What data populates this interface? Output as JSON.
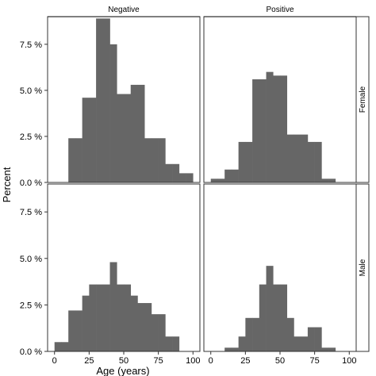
{
  "chart_data": {
    "type": "bar",
    "subtype": "faceted histogram",
    "xlabel": "Age (years)",
    "ylabel": "Percent",
    "xlim": [
      -5,
      105
    ],
    "ylim": [
      0,
      9
    ],
    "x_ticks": [
      0,
      25,
      50,
      75,
      100
    ],
    "x_tick_labels": [
      "0",
      "25",
      "50",
      "75",
      "100"
    ],
    "y_ticks": [
      0,
      2.5,
      5,
      7.5
    ],
    "y_tick_labels": [
      "0.0 %",
      "2.5 %",
      "5.0 %",
      "7.5 %"
    ],
    "bin_width": 5,
    "bar_color": "#666666",
    "columns": [
      "Negative",
      "Positive"
    ],
    "rows": [
      "Female",
      "Male"
    ],
    "panels": [
      {
        "column": "Negative",
        "row": "Female",
        "bins": [
          {
            "x0": 10,
            "x1": 15,
            "value": 2.4
          },
          {
            "x0": 15,
            "x1": 20,
            "value": 2.4
          },
          {
            "x0": 20,
            "x1": 25,
            "value": 4.6
          },
          {
            "x0": 25,
            "x1": 30,
            "value": 4.6
          },
          {
            "x0": 30,
            "x1": 35,
            "value": 8.9
          },
          {
            "x0": 35,
            "x1": 40,
            "value": 8.9
          },
          {
            "x0": 40,
            "x1": 45,
            "value": 7.5
          },
          {
            "x0": 45,
            "x1": 50,
            "value": 4.8
          },
          {
            "x0": 50,
            "x1": 55,
            "value": 4.8
          },
          {
            "x0": 55,
            "x1": 60,
            "value": 5.3
          },
          {
            "x0": 60,
            "x1": 65,
            "value": 5.3
          },
          {
            "x0": 65,
            "x1": 70,
            "value": 2.4
          },
          {
            "x0": 70,
            "x1": 75,
            "value": 2.4
          },
          {
            "x0": 75,
            "x1": 80,
            "value": 2.4
          },
          {
            "x0": 80,
            "x1": 85,
            "value": 1.0
          },
          {
            "x0": 85,
            "x1": 90,
            "value": 1.0
          },
          {
            "x0": 90,
            "x1": 95,
            "value": 0.5
          },
          {
            "x0": 95,
            "x1": 100,
            "value": 0.5
          }
        ]
      },
      {
        "column": "Positive",
        "row": "Female",
        "bins": [
          {
            "x0": 0,
            "x1": 5,
            "value": 0.2
          },
          {
            "x0": 5,
            "x1": 10,
            "value": 0.2
          },
          {
            "x0": 10,
            "x1": 15,
            "value": 0.7
          },
          {
            "x0": 15,
            "x1": 20,
            "value": 0.7
          },
          {
            "x0": 20,
            "x1": 25,
            "value": 2.2
          },
          {
            "x0": 25,
            "x1": 30,
            "value": 2.2
          },
          {
            "x0": 30,
            "x1": 35,
            "value": 5.6
          },
          {
            "x0": 35,
            "x1": 40,
            "value": 5.6
          },
          {
            "x0": 40,
            "x1": 45,
            "value": 6.0
          },
          {
            "x0": 45,
            "x1": 50,
            "value": 5.8
          },
          {
            "x0": 50,
            "x1": 55,
            "value": 5.8
          },
          {
            "x0": 55,
            "x1": 60,
            "value": 2.6
          },
          {
            "x0": 60,
            "x1": 65,
            "value": 2.6
          },
          {
            "x0": 65,
            "x1": 70,
            "value": 2.6
          },
          {
            "x0": 70,
            "x1": 75,
            "value": 2.2
          },
          {
            "x0": 75,
            "x1": 80,
            "value": 2.2
          },
          {
            "x0": 80,
            "x1": 85,
            "value": 0.2
          },
          {
            "x0": 85,
            "x1": 90,
            "value": 0.2
          }
        ]
      },
      {
        "column": "Negative",
        "row": "Male",
        "bins": [
          {
            "x0": 0,
            "x1": 5,
            "value": 0.5
          },
          {
            "x0": 5,
            "x1": 10,
            "value": 0.5
          },
          {
            "x0": 10,
            "x1": 15,
            "value": 2.2
          },
          {
            "x0": 15,
            "x1": 20,
            "value": 2.2
          },
          {
            "x0": 20,
            "x1": 25,
            "value": 3.0
          },
          {
            "x0": 25,
            "x1": 30,
            "value": 3.6
          },
          {
            "x0": 30,
            "x1": 35,
            "value": 3.6
          },
          {
            "x0": 35,
            "x1": 40,
            "value": 3.6
          },
          {
            "x0": 40,
            "x1": 45,
            "value": 4.8
          },
          {
            "x0": 45,
            "x1": 50,
            "value": 3.6
          },
          {
            "x0": 50,
            "x1": 55,
            "value": 3.6
          },
          {
            "x0": 55,
            "x1": 60,
            "value": 3.0
          },
          {
            "x0": 60,
            "x1": 65,
            "value": 2.6
          },
          {
            "x0": 65,
            "x1": 70,
            "value": 2.6
          },
          {
            "x0": 70,
            "x1": 75,
            "value": 2.0
          },
          {
            "x0": 75,
            "x1": 80,
            "value": 2.0
          },
          {
            "x0": 80,
            "x1": 85,
            "value": 0.8
          },
          {
            "x0": 85,
            "x1": 90,
            "value": 0.8
          }
        ]
      },
      {
        "column": "Positive",
        "row": "Male",
        "bins": [
          {
            "x0": 10,
            "x1": 15,
            "value": 0.2
          },
          {
            "x0": 15,
            "x1": 20,
            "value": 0.2
          },
          {
            "x0": 20,
            "x1": 25,
            "value": 0.8
          },
          {
            "x0": 25,
            "x1": 30,
            "value": 1.8
          },
          {
            "x0": 30,
            "x1": 35,
            "value": 1.8
          },
          {
            "x0": 35,
            "x1": 40,
            "value": 3.6
          },
          {
            "x0": 40,
            "x1": 45,
            "value": 4.6
          },
          {
            "x0": 45,
            "x1": 50,
            "value": 3.6
          },
          {
            "x0": 50,
            "x1": 55,
            "value": 3.6
          },
          {
            "x0": 55,
            "x1": 60,
            "value": 1.8
          },
          {
            "x0": 60,
            "x1": 65,
            "value": 0.8
          },
          {
            "x0": 65,
            "x1": 70,
            "value": 0.8
          },
          {
            "x0": 70,
            "x1": 75,
            "value": 1.3
          },
          {
            "x0": 75,
            "x1": 80,
            "value": 1.3
          },
          {
            "x0": 80,
            "x1": 85,
            "value": 0.2
          },
          {
            "x0": 85,
            "x1": 90,
            "value": 0.2
          }
        ]
      }
    ]
  }
}
